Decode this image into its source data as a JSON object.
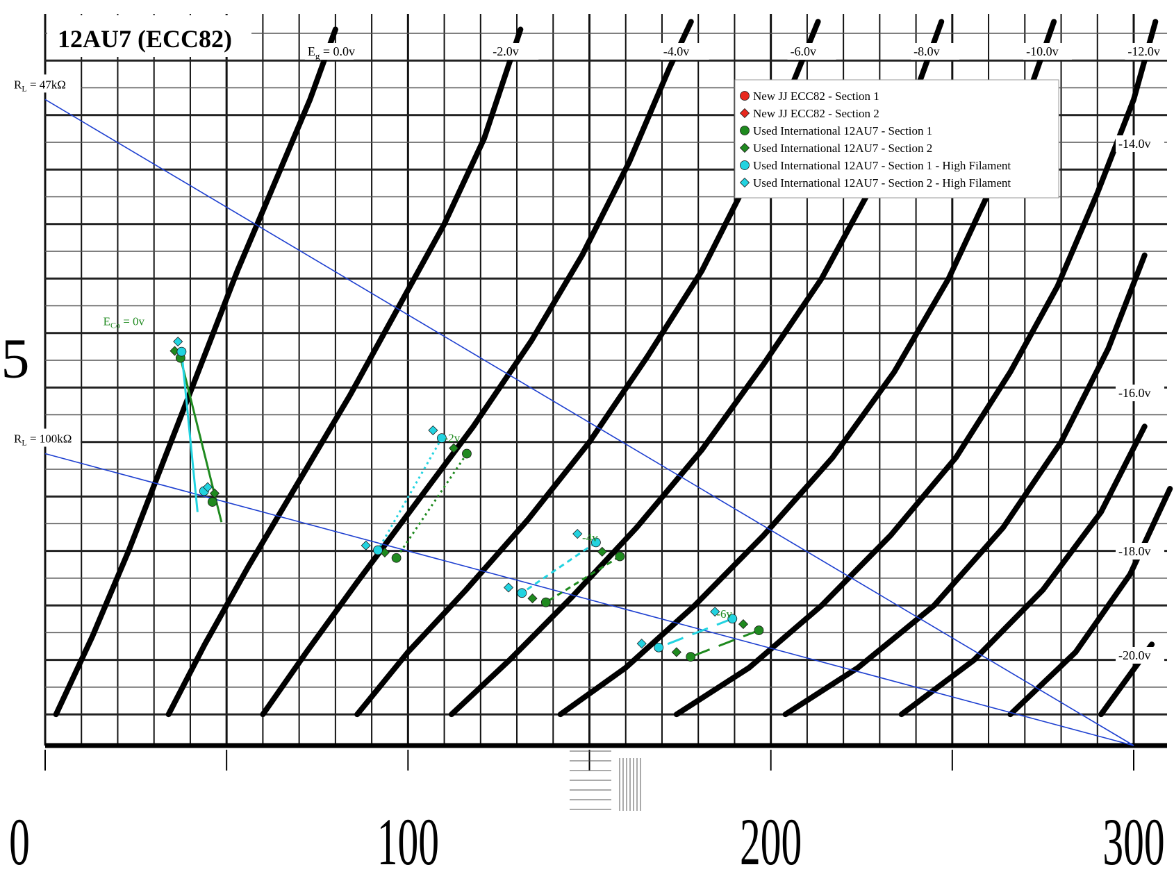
{
  "chart_data": {
    "type": "line",
    "title": "12AU7 (ECC82)",
    "xlabel": "",
    "ylabel": "",
    "x_ticks": [
      "0",
      "100",
      "200",
      "300"
    ],
    "y_ticks": [
      "5"
    ],
    "xlim": [
      0,
      300
    ],
    "ylim": [
      0,
      9.4
    ],
    "grid": true,
    "legend_position": "top-right",
    "grid_curves": [
      {
        "label_main": "E",
        "label_sub": "g",
        "label_rest": " = 0.0v",
        "eg": 0.0,
        "points": [
          [
            3,
            0.4
          ],
          [
            13,
            1.4
          ],
          [
            23,
            2.5
          ],
          [
            33,
            3.7
          ],
          [
            43,
            4.9
          ],
          [
            53,
            6.1
          ],
          [
            63,
            7.2
          ],
          [
            73,
            8.3
          ],
          [
            80,
            9.2
          ]
        ]
      },
      {
        "label": "-2.0v",
        "eg": -2.0,
        "points": [
          [
            34,
            0.4
          ],
          [
            44,
            1.3
          ],
          [
            56,
            2.3
          ],
          [
            70,
            3.4
          ],
          [
            84,
            4.5
          ],
          [
            97,
            5.6
          ],
          [
            110,
            6.7
          ],
          [
            121,
            7.8
          ],
          [
            131,
            9.2
          ]
        ]
      },
      {
        "label": "-4.0v",
        "eg": -4.0,
        "points": [
          [
            60,
            0.4
          ],
          [
            72,
            1.2
          ],
          [
            86,
            2.1
          ],
          [
            102,
            3.1
          ],
          [
            118,
            4.1
          ],
          [
            134,
            5.2
          ],
          [
            148,
            6.3
          ],
          [
            161,
            7.5
          ],
          [
            172,
            8.7
          ],
          [
            178,
            9.3
          ]
        ]
      },
      {
        "label": "-6.0v",
        "eg": -6.0,
        "points": [
          [
            86,
            0.4
          ],
          [
            100,
            1.2
          ],
          [
            116,
            2.0
          ],
          [
            133,
            2.9
          ],
          [
            150,
            3.9
          ],
          [
            166,
            5.0
          ],
          [
            181,
            6.1
          ],
          [
            194,
            7.3
          ],
          [
            206,
            8.5
          ],
          [
            213,
            9.3
          ]
        ]
      },
      {
        "label": "-8.0v",
        "eg": -8.0,
        "points": [
          [
            112,
            0.4
          ],
          [
            128,
            1.1
          ],
          [
            145,
            1.9
          ],
          [
            163,
            2.8
          ],
          [
            181,
            3.8
          ],
          [
            198,
            4.9
          ],
          [
            214,
            6.0
          ],
          [
            228,
            7.2
          ],
          [
            240,
            8.4
          ],
          [
            247,
            9.3
          ]
        ]
      },
      {
        "label": "-10.0v",
        "eg": -10.0,
        "points": [
          [
            142,
            0.4
          ],
          [
            160,
            1.0
          ],
          [
            179,
            1.8
          ],
          [
            198,
            2.7
          ],
          [
            217,
            3.7
          ],
          [
            234,
            4.8
          ],
          [
            249,
            6.0
          ],
          [
            262,
            7.3
          ],
          [
            272,
            8.5
          ],
          [
            278,
            9.3
          ]
        ]
      },
      {
        "label": "-12.0v",
        "eg": -12.0,
        "points": [
          [
            174,
            0.4
          ],
          [
            194,
            1.0
          ],
          [
            214,
            1.8
          ],
          [
            233,
            2.7
          ],
          [
            251,
            3.7
          ],
          [
            266,
            4.8
          ],
          [
            279,
            5.9
          ],
          [
            290,
            7.1
          ],
          [
            300,
            8.3
          ],
          [
            306,
            9.3
          ]
        ]
      },
      {
        "label": "-14.0v",
        "eg": -14.0,
        "points": [
          [
            204,
            0.4
          ],
          [
            224,
            1.0
          ],
          [
            245,
            1.8
          ],
          [
            264,
            2.8
          ],
          [
            280,
            3.9
          ],
          [
            293,
            5.1
          ],
          [
            303,
            6.3
          ],
          [
            312,
            7.6
          ]
        ]
      },
      {
        "label": "-16.0v",
        "eg": -16.0,
        "points": [
          [
            236,
            0.4
          ],
          [
            256,
            1.1
          ],
          [
            275,
            2.0
          ],
          [
            291,
            3.0
          ],
          [
            303,
            4.1
          ],
          [
            312,
            5.3
          ]
        ]
      },
      {
        "label": "-18.0v",
        "eg": -18.0,
        "points": [
          [
            266,
            0.4
          ],
          [
            284,
            1.2
          ],
          [
            299,
            2.2
          ],
          [
            310,
            3.3
          ],
          [
            316,
            4.1
          ]
        ]
      },
      {
        "label": "-20.0v",
        "eg": -20.0,
        "points": [
          [
            291,
            0.4
          ],
          [
            305,
            1.3
          ],
          [
            314,
            2.3
          ]
        ]
      }
    ],
    "load_lines": [
      {
        "label_main": "R",
        "label_sub": "L",
        "label_rest": " = 47kΩ",
        "points": [
          [
            0,
            8.3
          ],
          [
            300,
            0.0
          ]
        ]
      },
      {
        "label_main": "R",
        "label_sub": "L",
        "label_rest": " = 100kΩ",
        "points": [
          [
            0,
            3.75
          ],
          [
            300,
            0.0
          ]
        ]
      }
    ],
    "bias_labels": [
      {
        "label_main": "E",
        "label_sub": "Co",
        "label_rest": " = 0v",
        "at": [
          16,
          5.4
        ]
      },
      {
        "label": "-2v",
        "at": [
          110,
          3.9
        ]
      },
      {
        "label": "-4v",
        "at": [
          148,
          2.62
        ]
      },
      {
        "label": "-6v",
        "at": [
          185,
          1.64
        ]
      }
    ],
    "series": [
      {
        "name": "New JJ ECC82 - Section 1",
        "marker": "circle",
        "color": "#e8281e",
        "points": []
      },
      {
        "name": "New JJ ECC82 - Section 2",
        "marker": "diamond",
        "color": "#e8281e",
        "points": []
      },
      {
        "name": "Used International 12AU7 - Section 1",
        "marker": "circle",
        "color": "#1f8a1f",
        "points": [
          [
            37.3,
            4.98
          ],
          [
            46.1,
            3.13
          ],
          [
            116.2,
            3.75
          ],
          [
            96.8,
            2.41
          ],
          [
            158.4,
            2.43
          ],
          [
            138,
            1.84
          ],
          [
            196.7,
            1.48
          ],
          [
            177.9,
            1.14
          ]
        ]
      },
      {
        "name": "Used International 12AU7 - Section 2",
        "marker": "diamond",
        "color": "#1f8a1f",
        "points": [
          [
            35.7,
            5.07
          ],
          [
            46.7,
            3.24
          ],
          [
            112.6,
            3.82
          ],
          [
            93.6,
            2.48
          ],
          [
            153.5,
            2.49
          ],
          [
            134.3,
            1.89
          ],
          [
            192.4,
            1.56
          ],
          [
            174,
            1.2
          ]
        ]
      },
      {
        "name": "Used International 12AU7 - Section 1 - High Filament",
        "marker": "circle",
        "color": "#22d3e0",
        "points": [
          [
            37.6,
            5.06
          ],
          [
            43.8,
            3.27
          ],
          [
            109.3,
            3.95
          ],
          [
            91.7,
            2.51
          ],
          [
            151.8,
            2.61
          ],
          [
            131.4,
            1.96
          ],
          [
            189.4,
            1.63
          ],
          [
            169.1,
            1.26
          ]
        ]
      },
      {
        "name": "Used International 12AU7 - Section 2 - High Filament",
        "marker": "diamond",
        "color": "#22d3e0",
        "points": [
          [
            36.6,
            5.19
          ],
          [
            44.8,
            3.32
          ],
          [
            106.9,
            4.05
          ],
          [
            88.4,
            2.57
          ],
          [
            146.7,
            2.72
          ],
          [
            127.7,
            2.03
          ],
          [
            184.6,
            1.72
          ],
          [
            164.4,
            1.31
          ]
        ]
      }
    ],
    "connectors": [
      {
        "color": "#1f8a1f",
        "style": "solid",
        "points": [
          [
            37.3,
            4.98
          ],
          [
            48.6,
            2.87
          ]
        ]
      },
      {
        "color": "#22d3e0",
        "style": "solid",
        "points": [
          [
            37.6,
            5.06
          ],
          [
            42.0,
            3.0
          ]
        ]
      },
      {
        "color": "#1f8a1f",
        "style": "dotted",
        "points": [
          [
            116.2,
            3.75
          ],
          [
            96.8,
            2.41
          ]
        ]
      },
      {
        "color": "#22d3e0",
        "style": "dotted",
        "points": [
          [
            109.3,
            3.95
          ],
          [
            91.7,
            2.51
          ]
        ]
      },
      {
        "color": "#1f8a1f",
        "style": "dashed",
        "points": [
          [
            158.4,
            2.43
          ],
          [
            138,
            1.84
          ]
        ]
      },
      {
        "color": "#22d3e0",
        "style": "dashed",
        "points": [
          [
            151.8,
            2.61
          ],
          [
            131.4,
            1.96
          ]
        ]
      },
      {
        "color": "#1f8a1f",
        "style": "longdash",
        "points": [
          [
            196.7,
            1.48
          ],
          [
            177.9,
            1.14
          ]
        ]
      },
      {
        "color": "#22d3e0",
        "style": "longdash",
        "points": [
          [
            189.4,
            1.63
          ],
          [
            169.1,
            1.26
          ]
        ]
      }
    ]
  }
}
